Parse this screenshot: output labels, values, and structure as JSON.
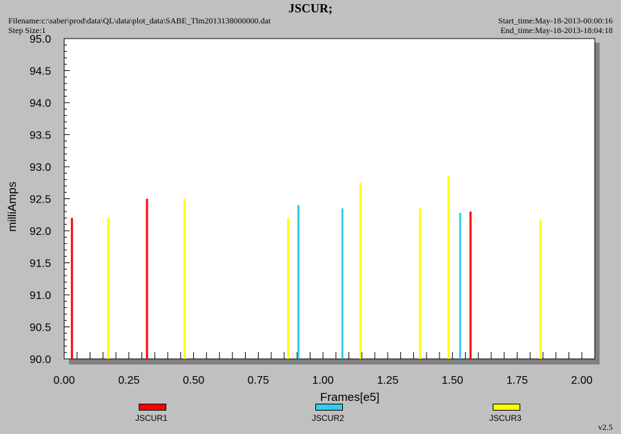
{
  "header": {
    "filename": "Filename:c:\\saber\\prod\\data\\QL\\data\\plot_data\\SABE_Tlm2013138000000.dat",
    "step_size": "Step Size:1",
    "start_time": "Start_time:May-18-2013-00:00:16",
    "end_time": "End_time:May-18-2013-18:04:18"
  },
  "version": "v2.5",
  "chart_data": {
    "type": "bar",
    "title": "JSCUR;",
    "xlabel": "Frames[e5]",
    "ylabel": "milliAmps",
    "xlim": [
      0,
      2.05
    ],
    "ylim": [
      90.0,
      95.0
    ],
    "xticks": [
      "0.00",
      "0.25",
      "0.50",
      "0.75",
      "1.00",
      "1.25",
      "1.50",
      "1.75",
      "2.00"
    ],
    "yticks": [
      "90.0",
      "90.5",
      "91.0",
      "91.5",
      "92.0",
      "92.5",
      "93.0",
      "93.5",
      "94.0",
      "94.5",
      "95.0"
    ],
    "grid": false,
    "legend_position": "bottom",
    "series": [
      {
        "name": "JSCUR1",
        "color": "#ff0000",
        "x": [
          0.03,
          0.32,
          1.57
        ],
        "values": [
          92.2,
          92.5,
          92.3
        ]
      },
      {
        "name": "JSCUR2",
        "color": "#33ccee",
        "x": [
          0.905,
          1.075,
          1.53
        ],
        "values": [
          92.4,
          92.35,
          92.28
        ]
      },
      {
        "name": "JSCUR3",
        "color": "#ffff00",
        "x": [
          0.17,
          0.465,
          0.865,
          1.145,
          1.375,
          1.485,
          1.84
        ],
        "values": [
          92.2,
          92.5,
          92.2,
          92.75,
          92.35,
          92.85,
          92.18
        ]
      }
    ]
  }
}
